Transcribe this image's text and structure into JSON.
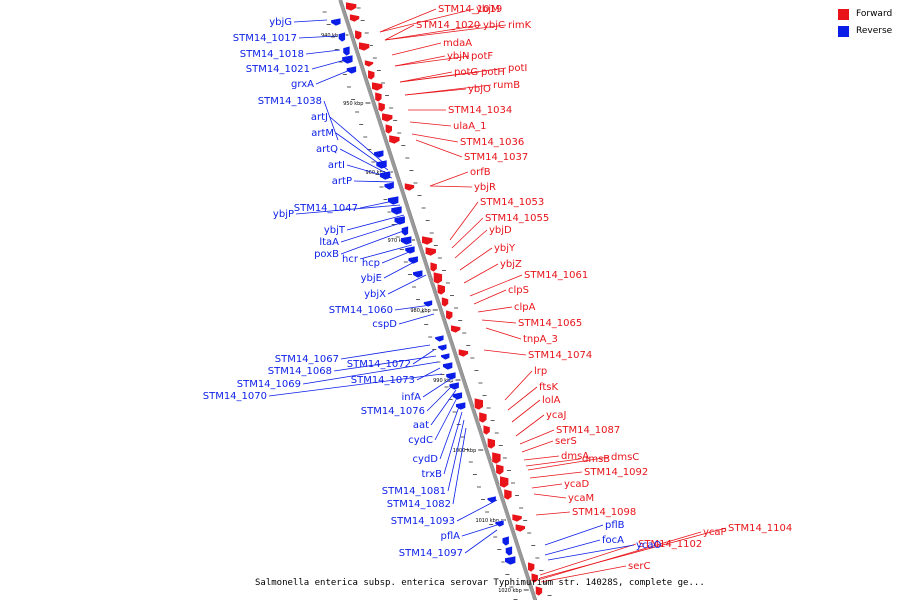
{
  "legend": {
    "forward": {
      "label": "Forward",
      "color": "#e8141a"
    },
    "reverse": {
      "label": "Reverse",
      "color": "#0b1ee8"
    }
  },
  "footer": "Salmonella enterica subsp. enterica serovar Typhimurium str. 14028S, complete ge...",
  "axis_color": "#999999",
  "ticks": [
    "940 kbp",
    "950 kbp",
    "960 kbp",
    "970 kbp",
    "980 kbp",
    "990 kbp",
    "1000 kbp",
    "1010 kbp",
    "1020 kbp"
  ],
  "forward_labels": [
    "STM14_1019",
    "ybjM",
    "STM14_1020",
    "ybjC",
    "rimK",
    "mdaA",
    "ybjN",
    "potF",
    "potG",
    "potH",
    "potI",
    "ybjO",
    "rumB",
    "STM14_1034",
    "ulaA_1",
    "STM14_1036",
    "STM14_1037",
    "orfB",
    "ybjR",
    "STM14_1053",
    "STM14_1055",
    "ybjD",
    "ybjY",
    "ybjZ",
    "STM14_1061",
    "clpS",
    "clpA",
    "STM14_1065",
    "tnpA_3",
    "STM14_1074",
    "lrp",
    "ftsK",
    "lolA",
    "ycaJ",
    "STM14_1087",
    "serS",
    "dmsA",
    "dmsB",
    "dmsC",
    "STM14_1092",
    "ycaD",
    "ycaM",
    "STM14_1098",
    "ycaP",
    "STM14_1104",
    "STM14_1102",
    "serC"
  ],
  "reverse_labels": [
    "ybjG",
    "STM14_1017",
    "STM14_1018",
    "STM14_1021",
    "grxA",
    "STM14_1038",
    "artJ",
    "artM",
    "artQ",
    "artI",
    "artP",
    "STM14_1047",
    "ybjP",
    "ybjT",
    "ltaA",
    "poxB",
    "hcr",
    "hcp",
    "ybjE",
    "ybjX",
    "STM14_1060",
    "cspD",
    "STM14_1067",
    "STM14_1072",
    "STM14_1068",
    "STM14_1069",
    "STM14_1073",
    "STM14_1070",
    "infA",
    "STM14_1076",
    "aat",
    "cydC",
    "cydD",
    "trxB",
    "STM14_1081",
    "STM14_1082",
    "STM14_1093",
    "pflA",
    "STM14_1097",
    "pflB",
    "focA",
    "ycaO"
  ]
}
